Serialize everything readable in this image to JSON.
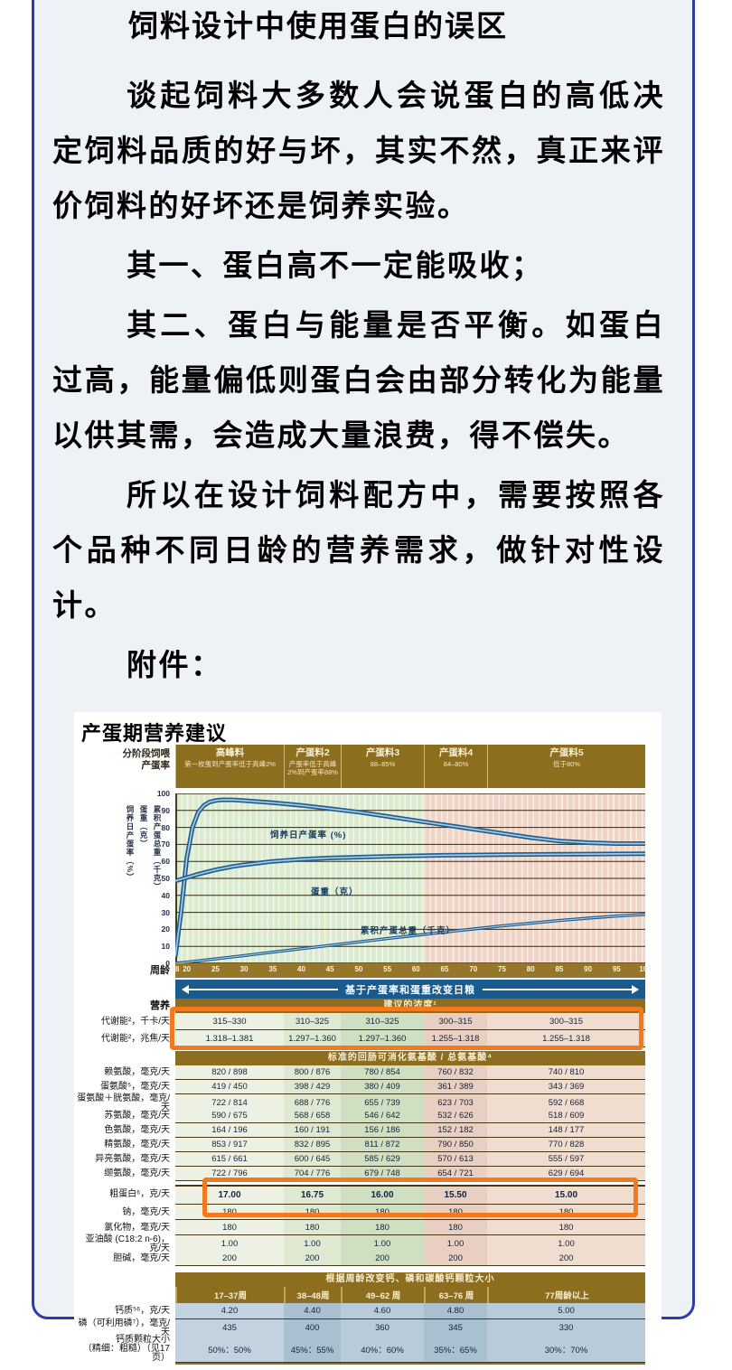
{
  "colors": {
    "panel_border": "#2b3da8",
    "panel_background": "#eef2f7",
    "header_gold": "#8d6e1f",
    "band_blue": "#1a5a8c",
    "curve_blue": "#1d5e92",
    "highlight_orange": "#f2791e",
    "zone_green": "#dcead0",
    "zone_pink": "#f0d4c6"
  },
  "document": {
    "title": "饲料设计中使用蛋白的误区",
    "paragraphs": [
      "谈起饲料大多数人会说蛋白的高低决定饲料品质的好与坏，其实不然，真正来评价饲料的好坏还是饲养实验。",
      "其一、蛋白高不一定能吸收；",
      "其二、蛋白与能量是否平衡。如蛋白过高，能量偏低则蛋白会由部分转化为能量以供其需，会造成大量浪费，得不偿失。",
      "所以在设计饲料配方中，需要按照各个品种不同日龄的营养需求，做针对性设计。"
    ],
    "attachment_label": "附件："
  },
  "chart": {
    "title": "产蛋期营养建议",
    "stage_axis_label": [
      "分阶段饲喂",
      "产蛋率"
    ],
    "stages": [
      {
        "title": "高峰料",
        "sub": "第一枚蛋到产蛋率低于高峰2%"
      },
      {
        "title": "产蛋料2",
        "sub": "产蛋率低于高峰2%到产蛋率88%"
      },
      {
        "title": "产蛋料3",
        "sub": "88–85%"
      },
      {
        "title": "产蛋料4",
        "sub": "84–80%"
      },
      {
        "title": "产蛋料5",
        "sub": "低于80%"
      }
    ],
    "x_axis_label": "周龄"
  },
  "chart_data": {
    "type": "line",
    "title": "产蛋期营养建议",
    "xlabel": "周龄",
    "ylabel": "饲养日产蛋率（%）／蛋重（克）／累积产蛋总重（千克）",
    "x_range": [
      18,
      100
    ],
    "x_ticks": [
      18,
      20,
      25,
      30,
      35,
      40,
      45,
      50,
      55,
      60,
      65,
      70,
      75,
      80,
      85,
      90,
      95,
      100
    ],
    "y_range": [
      0,
      100
    ],
    "y_ticks": [
      0,
      10,
      20,
      30,
      40,
      50,
      60,
      70,
      80,
      90,
      100
    ],
    "grid": true,
    "zone_split_week": 62,
    "series": [
      {
        "name": "饲养日产蛋率 (%)",
        "x": [
          18,
          19,
          20,
          21,
          22,
          23,
          24,
          25,
          26,
          28,
          30,
          35,
          40,
          45,
          50,
          55,
          60,
          65,
          70,
          75,
          80,
          85,
          90,
          95,
          100
        ],
        "y": [
          4,
          30,
          62,
          80,
          89,
          93,
          95,
          95.8,
          96.2,
          96.2,
          95.8,
          94.5,
          93,
          91,
          89,
          86.5,
          84,
          81.5,
          79,
          76.5,
          74,
          72,
          71,
          70.5,
          70.5
        ]
      },
      {
        "name": "蛋重（克）",
        "x": [
          18,
          20,
          22,
          25,
          28,
          30,
          35,
          40,
          45,
          50,
          55,
          60,
          65,
          70,
          75,
          80,
          85,
          90,
          95,
          100
        ],
        "y": [
          48.5,
          50.5,
          52.5,
          55,
          57,
          58,
          60,
          61.2,
          62,
          62.5,
          63,
          63.3,
          63.6,
          63.8,
          64,
          64.1,
          64.2,
          64.3,
          64.4,
          64.5
        ]
      },
      {
        "name": "累积产蛋总重（千克）",
        "x": [
          18,
          20,
          25,
          30,
          35,
          40,
          45,
          50,
          55,
          60,
          65,
          70,
          75,
          80,
          85,
          90,
          95,
          100
        ],
        "y": [
          0,
          0.7,
          2.6,
          4.6,
          6.6,
          8.6,
          10.6,
          12.6,
          14.6,
          16.5,
          18.4,
          20.2,
          22,
          23.6,
          25.2,
          26.6,
          27.8,
          28.8
        ]
      }
    ],
    "y_axis_vertical_labels": [
      "饲养日产蛋率（%）",
      "蛋重（克）",
      "累积产蛋总重（千克）"
    ]
  },
  "table": {
    "diet_band": "基于产蛋率和蛋重改变日粮",
    "nutrition_label": "营养",
    "concentration_header": "建议的浓度¹",
    "rows_energy": [
      {
        "label": "代谢能²，千卡/天",
        "values": [
          "315–330",
          "310–325",
          "310–325",
          "300–315",
          "300–315"
        ]
      },
      {
        "label": "代谢能²，兆焦/天",
        "values": [
          "1.318–1.381",
          "1.297–1.360",
          "1.297–1.360",
          "1.255–1.318",
          "1.255–1.318"
        ]
      }
    ],
    "amino_header": "标准的回肠可消化氨基酸 / 总氨基酸⁴",
    "rows_amino": [
      {
        "label": "赖氨酸，毫克/天",
        "values": [
          "820 / 898",
          "800 / 876",
          "780 / 854",
          "760 / 832",
          "740 / 810"
        ]
      },
      {
        "label": "蛋氨酸⁵，毫克/天",
        "values": [
          "419 / 450",
          "398 / 429",
          "380 / 409",
          "361 / 389",
          "343 / 369"
        ]
      },
      {
        "label": "蛋氨酸＋胱氨酸，毫克/天",
        "values": [
          "722 / 814",
          "688 / 776",
          "655 / 739",
          "623 / 703",
          "592 / 668"
        ]
      },
      {
        "label": "苏氨酸，毫克/天",
        "values": [
          "590 / 675",
          "568 / 658",
          "546 / 642",
          "532 / 626",
          "518 / 609"
        ]
      },
      {
        "label": "色氨酸，毫克/天",
        "values": [
          "164 / 196",
          "160 / 191",
          "156 / 186",
          "152 / 182",
          "148 / 177"
        ]
      },
      {
        "label": "精氨酸，毫克/天",
        "values": [
          "853 / 917",
          "832 / 895",
          "811 / 872",
          "790 / 850",
          "770 / 828"
        ]
      },
      {
        "label": "异亮氨酸，毫克/天",
        "values": [
          "615 / 661",
          "600 / 645",
          "585 / 629",
          "570 / 613",
          "555 / 597"
        ]
      },
      {
        "label": "缬氨酸，毫克/天",
        "values": [
          "722 / 796",
          "704 / 776",
          "679 / 748",
          "654 / 721",
          "629 / 694"
        ]
      }
    ],
    "row_protein": {
      "label": "粗蛋白⁶，克/天",
      "values": [
        "17.00",
        "16.75",
        "16.00",
        "15.50",
        "15.00"
      ]
    },
    "rows_minerals": [
      {
        "label": "钠，毫克/天",
        "values": [
          "180",
          "180",
          "180",
          "180",
          "180"
        ]
      },
      {
        "label": "氯化物，毫克/天",
        "values": [
          "180",
          "180",
          "180",
          "180",
          "180"
        ]
      },
      {
        "label": "亚油酸 (C18:2 n-6)，克/天",
        "values": [
          "1.00",
          "1.00",
          "1.00",
          "1.00",
          "1.00"
        ]
      },
      {
        "label": "胆碱，毫克/天",
        "values": [
          "200",
          "200",
          "200",
          "200",
          "200"
        ]
      }
    ],
    "calcium_header": "根据周龄改变钙、磷和碳酸钙颗粒大小",
    "week_columns": [
      "17–37周",
      "38–48周",
      "49–62 周",
      "63–76 周",
      "77周龄以上"
    ],
    "rows_calcium": [
      {
        "label": "钙质⁵⁶，克/天",
        "label2": "",
        "values": [
          "4.20",
          "4.40",
          "4.60",
          "4.80",
          "5.00"
        ]
      },
      {
        "label": "磷（可利用磷⁷），毫克/天",
        "label2": "",
        "values": [
          "435",
          "400",
          "360",
          "345",
          "330"
        ]
      },
      {
        "label": "钙质颗粒大小",
        "label2": "（精细：粗糙）（见17页）",
        "values": [
          "50%：50%",
          "45%：55%",
          "40%：60%",
          "35%：65%",
          "30%：70%"
        ]
      }
    ]
  }
}
